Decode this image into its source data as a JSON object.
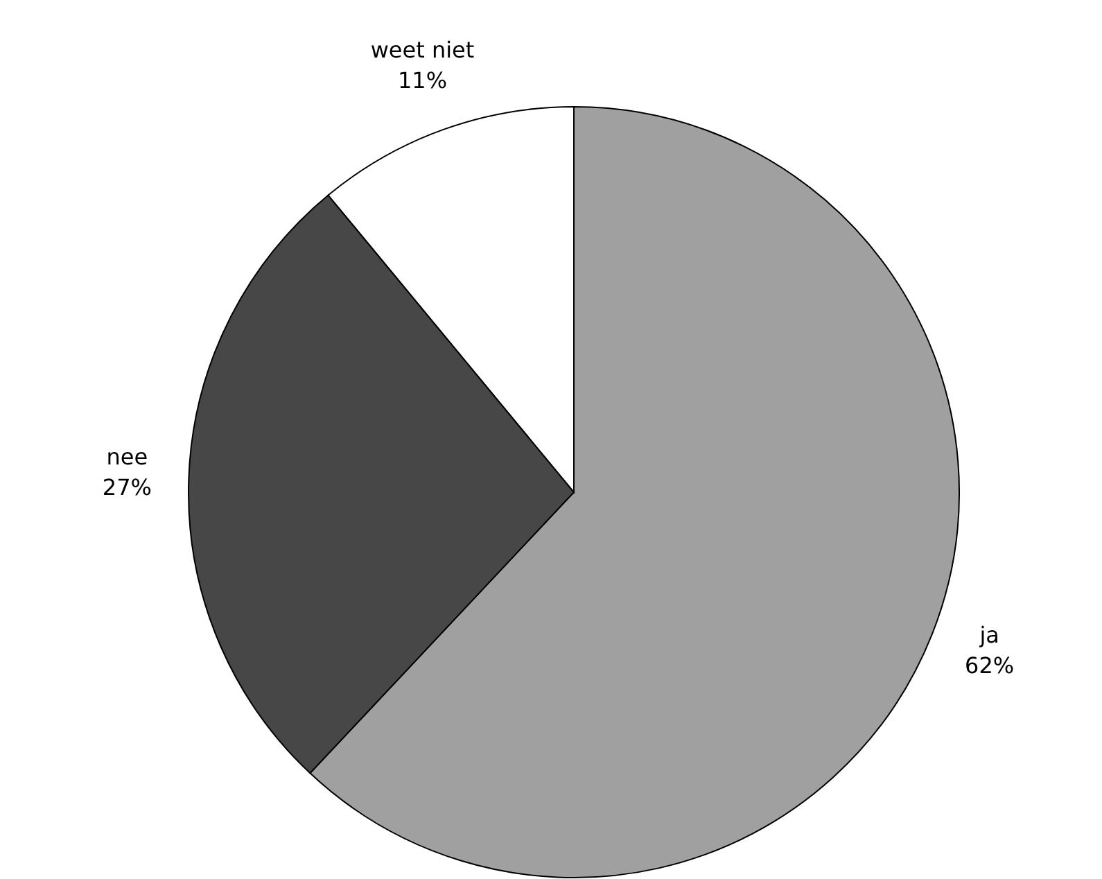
{
  "chart_data": {
    "type": "pie",
    "categories": [
      "ja",
      "nee",
      "weet niet"
    ],
    "values": [
      62,
      27,
      11
    ],
    "colors": [
      "#a0a0a0",
      "#474747",
      "#ffffff"
    ],
    "value_labels": [
      "62%",
      "27%",
      "11%"
    ]
  }
}
